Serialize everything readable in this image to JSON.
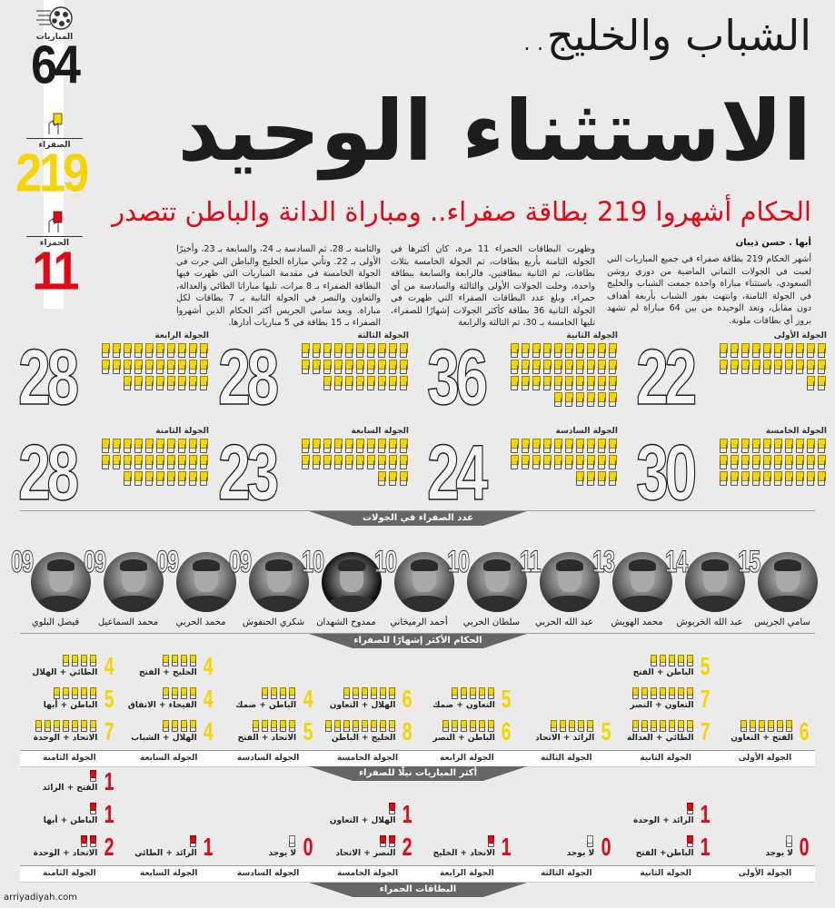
{
  "stats": {
    "matches": {
      "label": "المباريات",
      "value": "64",
      "icon": "football-icon"
    },
    "yellow": {
      "label": "الصفراء",
      "value": "219",
      "icon": "yellow-card-hand-icon",
      "color": "#f5d500"
    },
    "red": {
      "label": "الحمراء",
      "value": "11",
      "icon": "red-card-hand-icon",
      "color": "#e30613"
    }
  },
  "header": {
    "kicker": "الشباب والخليج..",
    "headline": "الاستثناء الوحيد",
    "subhead": "الحكام أشهروا 219 بطاقة صفراء.. ومباراة الدانة والباطن تتصدر"
  },
  "article": {
    "byline": "أبها . حسن ذيبان",
    "col1": "أشهر الحكام 219 بطاقة صفراء في جميع المباريات التي لعبت في الجولات الثماني الماضية من دوري روشن السعودي، باستثناء مباراة واحدة جمعت الشباب والخليج في الجولة الثامنة، وانتهت بفوز الشباب بأربعة أهداف دون مقابل، وتعد الوحيدة من بين 64 مباراة لم تشهد بروز أي بطاقات ملونة.",
    "col2": "وظهرت البطاقات الحمراء 11 مرة، كان أكثرها في الجولة الثامنة بأربع بطاقات، ثم الجولة الخامسة بثلاث بطاقات، ثم الثانية ببطاقتين، فالرابعة والسابعة ببطاقة واحدة، وخلت الجولات الأولى والثالثة والسادسة من أي حمراء، وبلغ عدد البطاقات الصفراء التي ظهرت في الجولة الثانية 36 بطاقة كأكثر الجولات إشهارًا للصفراء، تليها الخامسة بـ 30، ثم الثالثة والرابعة",
    "col3": "والثامنة بـ 28، ثم السادسة بـ 24، والسابعة بـ 23، وأخيرًا الأولى بـ 22. وتأتي مباراة الخليج والباطن التي جرت في الجولة الخامسة في مقدمة المباريات التي ظهرت فيها البطاقة الصفراء بـ 8 مرات، تليها مباراتا الطائي والعدالة، والتعاون والنصر في الجولة الثانية بـ 7 بطاقات لكل مباراة. ويعد سامي الجريس أكثر الحكام الذين أشهروا الصفراء بـ 15 بطاقة في 5 مباريات أدارها."
  },
  "rounds": [
    {
      "label": "الجولة الأولى",
      "yellow": 22
    },
    {
      "label": "الجولة الثانية",
      "yellow": 36
    },
    {
      "label": "الجولة الثالثة",
      "yellow": 28
    },
    {
      "label": "الجولة الرابعة",
      "yellow": 28
    },
    {
      "label": "الجولة الخامسة",
      "yellow": 30
    },
    {
      "label": "الجولة السادسة",
      "yellow": 24
    },
    {
      "label": "الجولة السابعة",
      "yellow": 23
    },
    {
      "label": "الجولة الثامنة",
      "yellow": 28
    }
  ],
  "sections": {
    "yellow_by_round": "عدد الصفراء في الجولات",
    "top_referees": "الحكام الأكثر إشهارًا للصفراء",
    "top_matches": "أكثر المباريات نيلًا للصفراء",
    "red_cards": "البطاقات الحمراء"
  },
  "referees": [
    {
      "name": "سامي الجريس",
      "cards": "15"
    },
    {
      "name": "عبد الله الخربوش",
      "cards": "14"
    },
    {
      "name": "محمد الهويش",
      "cards": "13"
    },
    {
      "name": "عبد الله الحربي",
      "cards": "11"
    },
    {
      "name": "سلطان الحربي",
      "cards": "10"
    },
    {
      "name": "أحمد الرميخاني",
      "cards": "10"
    },
    {
      "name": "ممدوح الشهدان",
      "cards": "10"
    },
    {
      "name": "شكري الحنفوش",
      "cards": "09"
    },
    {
      "name": "محمد الحربي",
      "cards": "09"
    },
    {
      "name": "محمد السماعيل",
      "cards": "09"
    },
    {
      "name": "فيصل البلوي",
      "cards": "09"
    }
  ],
  "round_labels": [
    "الجولة الأولى",
    "الجولة الثانية",
    "الجولة الثالثة",
    "الجولة الرابعة",
    "الجولة الخامسة",
    "الجولة السادسة",
    "الجولة السابعة",
    "الجولة الثامنة"
  ],
  "top_matches": [
    [
      {
        "n": "6",
        "teams": "الفتح + التعاون"
      }
    ],
    [
      {
        "n": "7",
        "teams": "الطائي + العدالة"
      },
      {
        "n": "7",
        "teams": "التعاون + النصر"
      },
      {
        "n": "5",
        "teams": "الباطن + الفتح"
      }
    ],
    [
      {
        "n": "5",
        "teams": "الرائد + الاتحاد"
      }
    ],
    [
      {
        "n": "6",
        "teams": "الباطن + النصر"
      },
      {
        "n": "5",
        "teams": "التعاون + ضمك"
      }
    ],
    [
      {
        "n": "8",
        "teams": "الخليج + الباطن"
      },
      {
        "n": "6",
        "teams": "الهلال + التعاون"
      }
    ],
    [
      {
        "n": "5",
        "teams": "الاتحاد + الفتح"
      },
      {
        "n": "4",
        "teams": "الباطن + ضمك"
      }
    ],
    [
      {
        "n": "4",
        "teams": "الهلال + الشباب"
      },
      {
        "n": "4",
        "teams": "الفيحاء + الاتفاق"
      },
      {
        "n": "4",
        "teams": "الخليج + الفتح"
      }
    ],
    [
      {
        "n": "7",
        "teams": "الاتحاد + الوحدة"
      },
      {
        "n": "5",
        "teams": "الباطن + أبها"
      },
      {
        "n": "4",
        "teams": "الطائي + الهلال"
      }
    ]
  ],
  "red_matches": [
    [
      {
        "n": "0",
        "teams": "لا يوجد"
      }
    ],
    [
      {
        "n": "1",
        "teams": "الباطن+ الفتح"
      },
      {
        "n": "1",
        "teams": "الرائد + الوحدة"
      }
    ],
    [
      {
        "n": "0",
        "teams": "لا يوجد"
      }
    ],
    [
      {
        "n": "1",
        "teams": "الاتحاد + الخليج"
      }
    ],
    [
      {
        "n": "2",
        "teams": "النصر + الاتحاد"
      },
      {
        "n": "1",
        "teams": "الهلال + التعاون"
      }
    ],
    [
      {
        "n": "0",
        "teams": "لا يوجد"
      }
    ],
    [
      {
        "n": "1",
        "teams": "الرائد + الطائي"
      }
    ],
    [
      {
        "n": "2",
        "teams": "الاتحاد + الوحدة"
      },
      {
        "n": "1",
        "teams": "الباطن + أبها"
      },
      {
        "n": "1",
        "teams": "الفتح + الرائد"
      }
    ]
  ],
  "watermark": "arriyadiyah.com",
  "colors": {
    "yellow": "#f5d500",
    "red": "#e30613",
    "banner": "#666666",
    "background": "#ebebeb"
  }
}
